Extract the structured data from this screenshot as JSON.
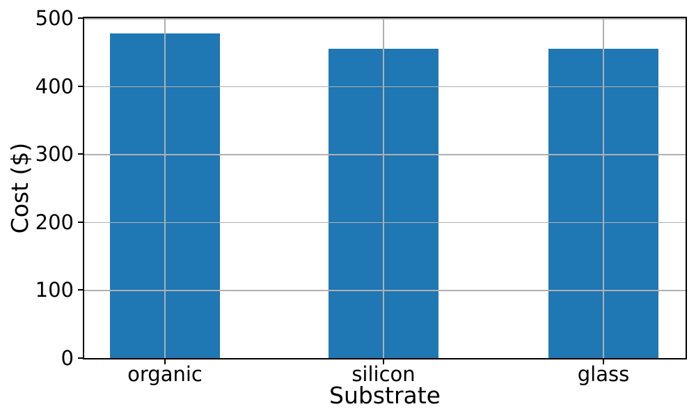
{
  "figure": {
    "background": "#ffffff"
  },
  "chart_data": {
    "type": "bar",
    "categories": [
      "organic",
      "silicon",
      "glass"
    ],
    "values": [
      477,
      455,
      455
    ],
    "title": "",
    "xlabel": "Substrate",
    "ylabel": "Cost ($)",
    "ylim": [
      0,
      500
    ],
    "yticks": [
      0,
      100,
      200,
      300,
      400,
      500
    ],
    "grid": true,
    "grid_over_bars": true,
    "legend": "none",
    "bar_color": "#1f77b4",
    "grid_color": "#b0b0b0",
    "axis_color": "#000000",
    "text_color": "#000000"
  }
}
